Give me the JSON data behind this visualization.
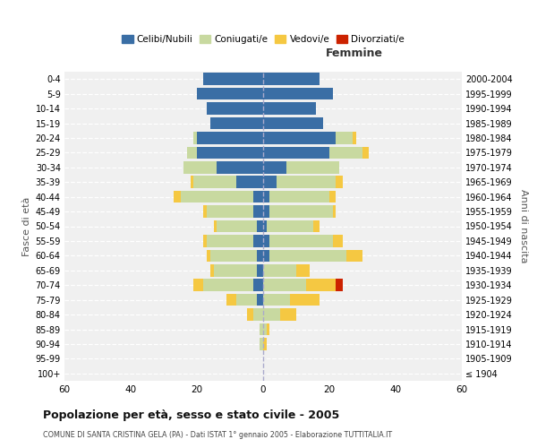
{
  "age_groups": [
    "100+",
    "95-99",
    "90-94",
    "85-89",
    "80-84",
    "75-79",
    "70-74",
    "65-69",
    "60-64",
    "55-59",
    "50-54",
    "45-49",
    "40-44",
    "35-39",
    "30-34",
    "25-29",
    "20-24",
    "15-19",
    "10-14",
    "5-9",
    "0-4"
  ],
  "birth_years": [
    "≤ 1904",
    "1905-1909",
    "1910-1914",
    "1915-1919",
    "1920-1924",
    "1925-1929",
    "1930-1934",
    "1935-1939",
    "1940-1944",
    "1945-1949",
    "1950-1954",
    "1955-1959",
    "1960-1964",
    "1965-1969",
    "1970-1974",
    "1975-1979",
    "1980-1984",
    "1985-1989",
    "1990-1994",
    "1995-1999",
    "2000-2004"
  ],
  "males": {
    "celibe": [
      0,
      0,
      0,
      0,
      0,
      2,
      3,
      2,
      2,
      3,
      2,
      3,
      3,
      8,
      14,
      20,
      20,
      16,
      17,
      20,
      18
    ],
    "coniugato": [
      0,
      0,
      1,
      1,
      3,
      6,
      15,
      13,
      14,
      14,
      12,
      14,
      22,
      13,
      10,
      3,
      1,
      0,
      0,
      0,
      0
    ],
    "vedovo": [
      0,
      0,
      0,
      0,
      2,
      3,
      3,
      1,
      1,
      1,
      1,
      1,
      2,
      1,
      0,
      0,
      0,
      0,
      0,
      0,
      0
    ],
    "divorziato": [
      0,
      0,
      0,
      0,
      0,
      0,
      0,
      0,
      0,
      0,
      0,
      0,
      0,
      0,
      0,
      0,
      0,
      0,
      0,
      0,
      0
    ]
  },
  "females": {
    "nubile": [
      0,
      0,
      0,
      0,
      0,
      0,
      0,
      0,
      2,
      2,
      1,
      2,
      2,
      4,
      7,
      20,
      22,
      18,
      16,
      21,
      17
    ],
    "coniugata": [
      0,
      0,
      0,
      1,
      5,
      8,
      13,
      10,
      23,
      19,
      14,
      19,
      18,
      18,
      16,
      10,
      5,
      0,
      0,
      0,
      0
    ],
    "vedova": [
      0,
      0,
      1,
      1,
      5,
      9,
      9,
      4,
      5,
      3,
      2,
      1,
      2,
      2,
      0,
      2,
      1,
      0,
      0,
      0,
      0
    ],
    "divorziata": [
      0,
      0,
      0,
      0,
      0,
      0,
      2,
      0,
      0,
      0,
      0,
      0,
      0,
      0,
      0,
      0,
      0,
      0,
      0,
      0,
      0
    ]
  },
  "colors": {
    "celibe": "#3a6ea5",
    "coniugato": "#c8d9a0",
    "vedovo": "#f5c842",
    "divorziato": "#cc2200"
  },
  "title": "Popolazione per età, sesso e stato civile - 2005",
  "subtitle": "COMUNE DI SANTA CRISTINA GELA (PA) - Dati ISTAT 1° gennaio 2005 - Elaborazione TUTTITALIA.IT",
  "xlabel_right": "Femmine",
  "ylabel_left": "Fasce di età",
  "ylabel_right": "Anni di nascita",
  "xlim": 60,
  "bg_color": "#f0f0f0",
  "legend_labels": [
    "Celibi/Nubili",
    "Coniugati/e",
    "Vedovi/e",
    "Divorziati/e"
  ]
}
